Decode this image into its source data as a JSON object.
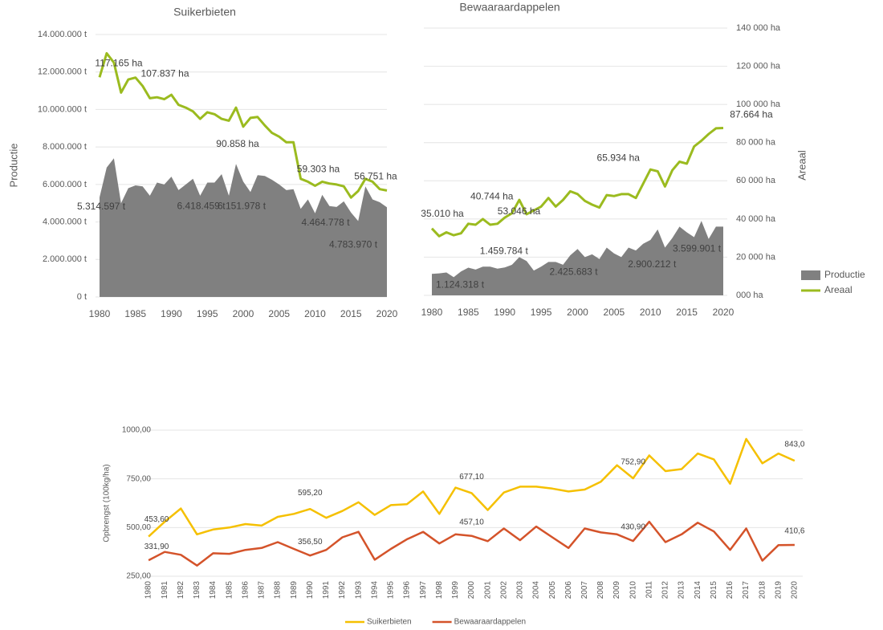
{
  "chart_data": [
    {
      "type": "area",
      "title": "Suikerbieten",
      "ylabel": "Productie",
      "x": [
        1980,
        1981,
        1982,
        1983,
        1984,
        1985,
        1986,
        1987,
        1988,
        1989,
        1990,
        1991,
        1992,
        1993,
        1994,
        1995,
        1996,
        1997,
        1998,
        1999,
        2000,
        2001,
        2002,
        2003,
        2004,
        2005,
        2006,
        2007,
        2008,
        2009,
        2010,
        2011,
        2012,
        2013,
        2014,
        2015,
        2016,
        2017,
        2018,
        2019,
        2020
      ],
      "xlim": [
        1980,
        2020
      ],
      "xticks": [
        1980,
        1985,
        1990,
        1995,
        2000,
        2005,
        2010,
        2015,
        2020
      ],
      "ylim": [
        0,
        14000000
      ],
      "yticks": [
        {
          "value": 0,
          "label": "0 t"
        },
        {
          "value": 2000000,
          "label": "2.000.000 t"
        },
        {
          "value": 4000000,
          "label": "4.000.000 t"
        },
        {
          "value": 6000000,
          "label": "6.000.000 t"
        },
        {
          "value": 8000000,
          "label": "8.000.000 t"
        },
        {
          "value": 10000000,
          "label": "10.000.000 t"
        },
        {
          "value": 12000000,
          "label": "12.000.000 t"
        },
        {
          "value": 14000000,
          "label": "14.000.000 t"
        }
      ],
      "y2lim": [
        0,
        140000
      ],
      "grid": true,
      "series": [
        {
          "type": "area",
          "color": "#808080",
          "values": [
            5314597,
            6900000,
            7400000,
            5000000,
            5800000,
            5950000,
            5900000,
            5400000,
            6100000,
            6000000,
            6418459,
            5700000,
            6000000,
            6300000,
            5400000,
            6100000,
            6100000,
            6550000,
            5400000,
            7100000,
            6151978,
            5600000,
            6500000,
            6450000,
            6250000,
            6000000,
            5700000,
            5750000,
            4700000,
            5200000,
            4464778,
            5450000,
            4850000,
            4800000,
            5100000,
            4500000,
            4050000,
            5900000,
            5200000,
            5050000,
            4783970
          ],
          "value_labels": [
            "5.314.597 t",
            null,
            null,
            null,
            null,
            null,
            null,
            null,
            null,
            null,
            "6.418.459 t",
            null,
            null,
            null,
            null,
            null,
            null,
            null,
            null,
            null,
            "6.151.978 t",
            null,
            null,
            null,
            null,
            null,
            null,
            null,
            null,
            null,
            "4.464.778 t",
            null,
            null,
            null,
            null,
            null,
            null,
            null,
            null,
            null,
            "4.783.970 t"
          ]
        },
        {
          "type": "line",
          "axis": "y2",
          "color": "#9bbb1f",
          "values": [
            117165,
            130000,
            125000,
            109000,
            116000,
            117000,
            112500,
            106000,
            106500,
            105500,
            107837,
            102500,
            101000,
            99000,
            95000,
            98500,
            97500,
            95000,
            94000,
            101000,
            90858,
            95500,
            96000,
            91500,
            87500,
            85500,
            82500,
            82500,
            63000,
            61500,
            59303,
            61500,
            60500,
            60000,
            59000,
            53000,
            56500,
            63000,
            61500,
            57500,
            56751
          ],
          "value_labels": [
            "117.165 ha",
            null,
            null,
            null,
            null,
            null,
            null,
            null,
            null,
            null,
            "107.837 ha",
            null,
            null,
            null,
            null,
            null,
            null,
            null,
            null,
            null,
            "90.858 ha",
            null,
            null,
            null,
            null,
            null,
            null,
            null,
            null,
            null,
            "59.303 ha",
            null,
            null,
            null,
            null,
            null,
            null,
            null,
            null,
            null,
            "56.751 ha"
          ]
        }
      ]
    },
    {
      "type": "area",
      "title": "Bewaaraardappelen",
      "y2label": "Areaal",
      "legend": "right",
      "x": [
        1980,
        1981,
        1982,
        1983,
        1984,
        1985,
        1986,
        1987,
        1988,
        1989,
        1990,
        1991,
        1992,
        1993,
        1994,
        1995,
        1996,
        1997,
        1998,
        1999,
        2000,
        2001,
        2002,
        2003,
        2004,
        2005,
        2006,
        2007,
        2008,
        2009,
        2010,
        2011,
        2012,
        2013,
        2014,
        2015,
        2016,
        2017,
        2018,
        2019,
        2020
      ],
      "xlim": [
        1980,
        2020
      ],
      "xticks": [
        1980,
        1985,
        1990,
        1995,
        2000,
        2005,
        2010,
        2015,
        2020
      ],
      "ylim": [
        0,
        14000000
      ],
      "y2lim": [
        0,
        140000
      ],
      "y2ticks": [
        {
          "value": 0,
          "label": "000 ha"
        },
        {
          "value": 20000,
          "label": "20 000 ha"
        },
        {
          "value": 40000,
          "label": "40 000 ha"
        },
        {
          "value": 60000,
          "label": "60 000 ha"
        },
        {
          "value": 80000,
          "label": "80 000 ha"
        },
        {
          "value": 100000,
          "label": "100 000 ha"
        },
        {
          "value": 120000,
          "label": "120 000 ha"
        },
        {
          "value": 140000,
          "label": "140 000 ha"
        }
      ],
      "grid": true,
      "series": [
        {
          "name": "Productie",
          "type": "area",
          "color": "#808080",
          "values": [
            1124318,
            1150000,
            1200000,
            950000,
            1250000,
            1450000,
            1350000,
            1500000,
            1500000,
            1400000,
            1459784,
            1600000,
            2000000,
            1800000,
            1300000,
            1500000,
            1750000,
            1750000,
            1600000,
            2100000,
            2425683,
            2000000,
            2150000,
            1900000,
            2500000,
            2200000,
            2000000,
            2500000,
            2350000,
            2700000,
            2900212,
            3450000,
            2500000,
            3000000,
            3600000,
            3300000,
            3050000,
            3900000,
            2950000,
            3600000,
            3599901
          ],
          "value_labels": [
            "1.124.318 t",
            null,
            null,
            null,
            null,
            null,
            null,
            null,
            null,
            null,
            "1.459.784 t",
            null,
            null,
            null,
            null,
            null,
            null,
            null,
            null,
            null,
            "2.425.683 t",
            null,
            null,
            null,
            null,
            null,
            null,
            null,
            null,
            null,
            "2.900.212 t",
            null,
            null,
            null,
            null,
            null,
            null,
            null,
            null,
            null,
            "3.599.901 t"
          ]
        },
        {
          "name": "Areaal",
          "type": "line",
          "axis": "y2",
          "color": "#9bbb1f",
          "values": [
            35010,
            31000,
            33000,
            31500,
            32500,
            37500,
            37000,
            40000,
            37000,
            37500,
            40744,
            43000,
            50000,
            42500,
            44500,
            46500,
            51000,
            46500,
            50000,
            54500,
            53046,
            49500,
            47500,
            46000,
            52500,
            52000,
            53000,
            53000,
            51000,
            58500,
            65934,
            65000,
            57000,
            65500,
            70000,
            69000,
            78000,
            81000,
            84500,
            87500,
            87664
          ],
          "value_labels": [
            "35.010 ha",
            null,
            null,
            null,
            null,
            null,
            null,
            null,
            null,
            null,
            "40.744 ha",
            null,
            null,
            null,
            null,
            null,
            null,
            null,
            null,
            null,
            "53.046 ha",
            null,
            null,
            null,
            null,
            null,
            null,
            null,
            null,
            null,
            "65.934 ha",
            null,
            null,
            null,
            null,
            null,
            null,
            null,
            null,
            null,
            "87.664 ha"
          ]
        }
      ]
    },
    {
      "type": "line",
      "ylabel": "Opbrengst  (100kg/ha)",
      "legend": "bottom",
      "categories": [
        "1980",
        "1981",
        "1982",
        "1983",
        "1984",
        "1985",
        "1986",
        "1987",
        "1988",
        "1989",
        "1990",
        "1991",
        "1992",
        "1993",
        "1994",
        "1995",
        "1996",
        "1997",
        "1998",
        "1999",
        "2000",
        "2001",
        "2002",
        "2003",
        "2004",
        "2005",
        "2006",
        "2007",
        "2008",
        "2009",
        "2010",
        "2011",
        "2012",
        "2013",
        "2014",
        "2015",
        "2016",
        "2017",
        "2018",
        "2019",
        "2020"
      ],
      "ylim": [
        250,
        1000
      ],
      "yticks": [
        {
          "value": 250,
          "label": "250,00"
        },
        {
          "value": 500,
          "label": "500,00"
        },
        {
          "value": 750,
          "label": "750,00"
        },
        {
          "value": 1000,
          "label": "1000,00"
        }
      ],
      "grid": true,
      "series": [
        {
          "name": "Suikerbieten",
          "color": "#f5c000",
          "values": [
            453.6,
            530,
            598,
            465,
            490,
            500,
            518,
            510,
            555,
            570,
            595.2,
            550,
            585,
            630,
            565,
            615,
            620,
            685,
            570,
            705,
            677.1,
            590,
            680,
            710,
            710,
            700,
            685,
            695,
            735,
            820,
            752.9,
            870,
            790,
            800,
            880,
            850,
            725,
            955,
            830,
            880,
            843.0
          ],
          "value_labels": [
            "453,60",
            null,
            null,
            null,
            null,
            null,
            null,
            null,
            null,
            null,
            "595,20",
            null,
            null,
            null,
            null,
            null,
            null,
            null,
            null,
            null,
            "677,10",
            null,
            null,
            null,
            null,
            null,
            null,
            null,
            null,
            null,
            "752,90",
            null,
            null,
            null,
            null,
            null,
            null,
            null,
            null,
            null,
            "843,0"
          ]
        },
        {
          "name": "Bewaaraardappelen",
          "color": "#d4532a",
          "values": [
            331.9,
            375,
            360,
            305,
            368,
            365,
            385,
            395,
            425,
            390,
            356.5,
            385,
            450,
            478,
            335,
            390,
            440,
            478,
            418,
            465,
            457.1,
            430,
            495,
            435,
            505,
            450,
            395,
            495,
            475,
            465,
            430.9,
            530,
            425,
            465,
            525,
            480,
            385,
            495,
            330,
            410,
            410.6
          ],
          "value_labels": [
            "331,90",
            null,
            null,
            null,
            null,
            null,
            null,
            null,
            null,
            null,
            "356,50",
            null,
            null,
            null,
            null,
            null,
            null,
            null,
            null,
            null,
            "457,10",
            null,
            null,
            null,
            null,
            null,
            null,
            null,
            null,
            null,
            "430,90",
            null,
            null,
            null,
            null,
            null,
            null,
            null,
            null,
            null,
            "410,6"
          ]
        }
      ]
    }
  ]
}
